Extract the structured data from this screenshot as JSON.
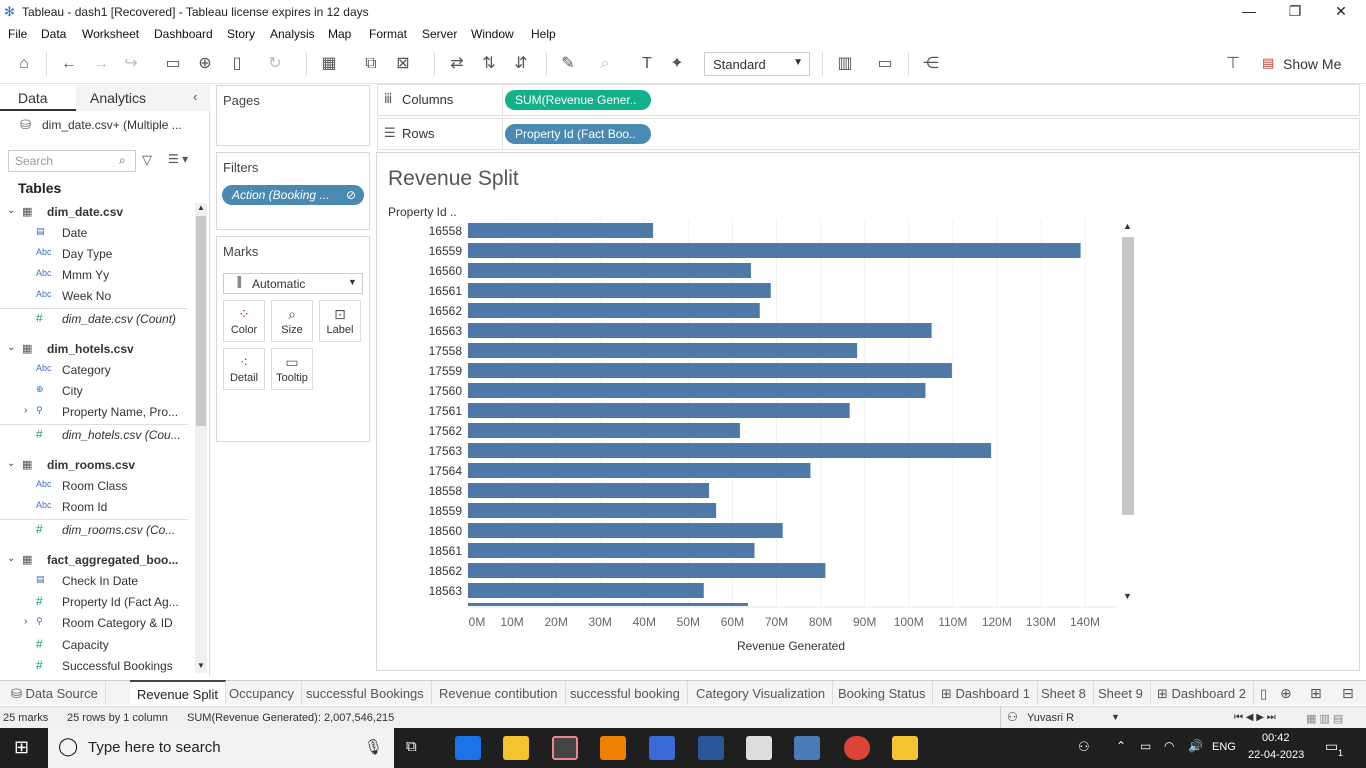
{
  "window": {
    "title": "Tableau - dash1 [Recovered] - Tableau license expires in 12 days"
  },
  "menu": [
    "File",
    "Data",
    "Worksheet",
    "Dashboard",
    "Story",
    "Analysis",
    "Map",
    "Format",
    "Server",
    "Window",
    "Help"
  ],
  "toolbar": {
    "fit_mode": "Standard",
    "show_me": "Show Me"
  },
  "left_panel": {
    "tab_data": "Data",
    "tab_analytics": "Analytics",
    "datasource": "dim_date.csv+ (Multiple ...",
    "search_placeholder": "Search",
    "tables_label": "Tables",
    "fields": [
      {
        "kind": "table",
        "label": "dim_date.csv"
      },
      {
        "kind": "dim",
        "type": "Date",
        "label": "Date"
      },
      {
        "kind": "dim",
        "type": "Abc",
        "label": "Day Type"
      },
      {
        "kind": "dim",
        "type": "Abc",
        "label": "Mmm Yy"
      },
      {
        "kind": "dim",
        "type": "Abc",
        "label": "Week No"
      },
      {
        "kind": "count",
        "type": "#",
        "label": "dim_date.csv (Count)"
      },
      {
        "kind": "table",
        "label": "dim_hotels.csv"
      },
      {
        "kind": "dim",
        "type": "Abc",
        "label": "Category"
      },
      {
        "kind": "dim",
        "type": "Geo",
        "label": "City"
      },
      {
        "kind": "hier",
        "type": "Hier",
        "label": "Property Name, Pro..."
      },
      {
        "kind": "count",
        "type": "#",
        "label": "dim_hotels.csv (Cou..."
      },
      {
        "kind": "table",
        "label": "dim_rooms.csv"
      },
      {
        "kind": "dim",
        "type": "Abc",
        "label": "Room Class"
      },
      {
        "kind": "dim",
        "type": "Abc",
        "label": "Room Id"
      },
      {
        "kind": "count",
        "type": "#",
        "label": "dim_rooms.csv (Co..."
      },
      {
        "kind": "table",
        "label": "fact_aggregated_boo..."
      },
      {
        "kind": "dim",
        "type": "Date",
        "label": "Check In Date"
      },
      {
        "kind": "meas",
        "type": "#",
        "label": "Property Id (Fact Ag..."
      },
      {
        "kind": "hier",
        "type": "Hier",
        "label": "Room Category & ID"
      },
      {
        "kind": "meas",
        "type": "#",
        "label": "Capacity"
      },
      {
        "kind": "meas",
        "type": "#",
        "label": "Successful Bookings"
      }
    ]
  },
  "cards": {
    "pages": "Pages",
    "filters": "Filters",
    "filter_pill": "Action (Booking ...",
    "marks": "Marks",
    "mark_type": "Automatic",
    "mark_buttons": [
      "Color",
      "Size",
      "Label",
      "Detail",
      "Tooltip"
    ]
  },
  "shelves": {
    "columns_label": "Columns",
    "columns_pill": "SUM(Revenue Gener..",
    "rows_label": "Rows",
    "rows_pill": "Property Id (Fact Boo.."
  },
  "chart_data": {
    "type": "bar",
    "orientation": "horizontal",
    "title": "Revenue Split",
    "ylabel": "Property Id ..",
    "xlabel": "Revenue Generated",
    "xlim": [
      0,
      145
    ],
    "x_ticks": [
      "0M",
      "10M",
      "20M",
      "30M",
      "40M",
      "50M",
      "60M",
      "70M",
      "80M",
      "90M",
      "100M",
      "110M",
      "120M",
      "130M",
      "140M"
    ],
    "unit": "M",
    "bar_color": "#4e79a7",
    "categories": [
      "16558",
      "16559",
      "16560",
      "16561",
      "16562",
      "16563",
      "17558",
      "17559",
      "17560",
      "17561",
      "17562",
      "17563",
      "17564",
      "18558",
      "18559",
      "18560",
      "18561",
      "18562",
      "18563"
    ],
    "values": [
      42.0,
      139.0,
      64.2,
      68.7,
      66.2,
      105.2,
      88.3,
      109.8,
      103.8,
      86.6,
      61.7,
      118.7,
      77.7,
      54.7,
      56.3,
      71.4,
      65.0,
      81.1,
      53.5
    ],
    "partial_next_value": 63.5
  },
  "sheet_tabs": [
    "Data Source",
    "Revenue Split",
    "Occupancy",
    "successful Bookings",
    "Revenue contibution",
    "successful booking",
    "Category Visualization",
    "Booking Status",
    "Dashboard 1",
    "Sheet 8",
    "Sheet 9",
    "Dashboard 2"
  ],
  "active_sheet": "Revenue Split",
  "status": {
    "marks": "25 marks",
    "rows_cols": "25 rows by 1 column",
    "sum": "SUM(Revenue Generated): 2,007,546,215",
    "user": "Yuvasri R"
  },
  "taskbar": {
    "search_placeholder": "Type here to search",
    "lang": "ENG",
    "time": "00:42",
    "date": "22-04-2023",
    "notifications": "1"
  }
}
